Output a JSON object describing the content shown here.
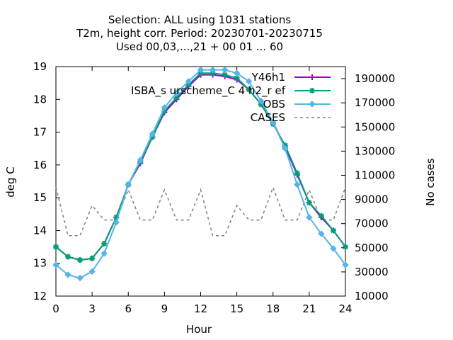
{
  "chart_data": {
    "type": "line",
    "title_lines": [
      "Selection: ALL using  1031 stations",
      "T2m, height corr.   Period: 20230701-20230715",
      "Used  00,03,...,21  + 00 01 ... 60"
    ],
    "xlabel": "Hour",
    "ylabel": "deg C",
    "y2label": "No cases",
    "xlim": [
      0,
      24
    ],
    "ylim": [
      12,
      19
    ],
    "y2lim": [
      10000,
      200000
    ],
    "x_ticks": [
      0,
      3,
      6,
      9,
      12,
      15,
      18,
      21,
      24
    ],
    "y_ticks": [
      12,
      13,
      14,
      15,
      16,
      17,
      18,
      19
    ],
    "y2_ticks": [
      10000,
      30000,
      50000,
      70000,
      90000,
      110000,
      130000,
      150000,
      170000,
      190000
    ],
    "legend_position": "top-right",
    "grid": false,
    "x": [
      0,
      1,
      2,
      3,
      4,
      5,
      6,
      7,
      8,
      9,
      10,
      11,
      12,
      13,
      14,
      15,
      16,
      17,
      18,
      19,
      20,
      21,
      22,
      23,
      24
    ],
    "series": [
      {
        "name": "Y46h1",
        "color": "#9400d3",
        "marker": "plus",
        "values": [
          13.5,
          13.2,
          13.1,
          13.15,
          13.6,
          14.4,
          15.4,
          16.05,
          16.85,
          17.6,
          18.0,
          18.4,
          18.75,
          18.75,
          18.7,
          18.6,
          18.3,
          17.85,
          17.3,
          16.55,
          15.7,
          14.85,
          14.4,
          14.0,
          13.5
        ]
      },
      {
        "name": "ISBA_s urscheme_C 4 h2_r ef",
        "color": "#009e73",
        "marker": "star",
        "values": [
          13.5,
          13.2,
          13.1,
          13.15,
          13.6,
          14.4,
          15.4,
          16.1,
          16.85,
          17.65,
          18.05,
          18.45,
          18.8,
          18.8,
          18.75,
          18.65,
          18.3,
          17.85,
          17.25,
          16.6,
          15.75,
          14.85,
          14.45,
          14.0,
          13.5
        ]
      },
      {
        "name": "OBS",
        "color": "#56b4e9",
        "marker": "diamond",
        "values": [
          12.95,
          12.65,
          12.55,
          12.75,
          13.3,
          14.25,
          15.4,
          16.15,
          16.95,
          17.75,
          18.2,
          18.55,
          18.9,
          18.9,
          18.9,
          18.8,
          18.55,
          17.95,
          17.3,
          16.5,
          15.4,
          14.4,
          13.9,
          13.45,
          12.95
        ]
      },
      {
        "name": "CASES",
        "color": "#7f7f7f",
        "dash": true,
        "axis": "y2",
        "values": [
          100000,
          60000,
          60000,
          85000,
          73000,
          73000,
          98000,
          73000,
          73000,
          98000,
          73000,
          73000,
          98000,
          60000,
          60000,
          85000,
          73000,
          73000,
          100000,
          73000,
          73000,
          98000,
          73000,
          73000,
          100000
        ]
      }
    ]
  }
}
